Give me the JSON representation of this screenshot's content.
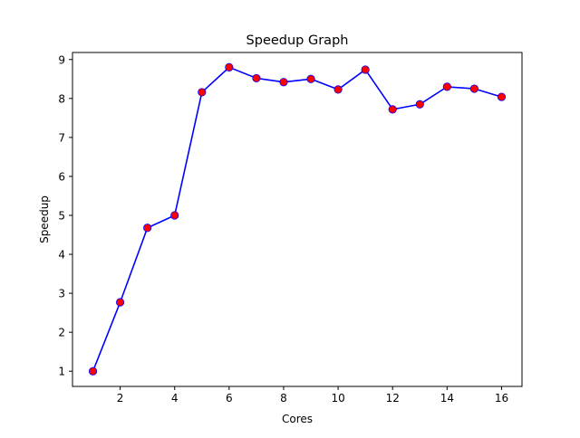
{
  "chart_data": {
    "type": "line",
    "title": "Speedup Graph",
    "xlabel": "Cores",
    "ylabel": "Speedup",
    "xlim": [
      0.25,
      16.75
    ],
    "ylim": [
      0.61,
      9.18
    ],
    "x_ticks": [
      2,
      4,
      6,
      8,
      10,
      12,
      14,
      16
    ],
    "y_ticks": [
      1,
      2,
      3,
      4,
      5,
      6,
      7,
      8,
      9
    ],
    "grid": false,
    "legend": "none",
    "series": [
      {
        "x": [
          1,
          2,
          3,
          4,
          5,
          6,
          7,
          8,
          9,
          10,
          11,
          12,
          13,
          14,
          15,
          16
        ],
        "y": [
          1.0,
          2.77,
          4.68,
          5.0,
          8.16,
          8.8,
          8.52,
          8.42,
          8.5,
          8.23,
          8.74,
          7.72,
          7.85,
          8.3,
          8.25,
          8.04
        ],
        "line_color": "#0000ff",
        "marker_color": "#ff0000",
        "marker": "circle"
      }
    ]
  }
}
